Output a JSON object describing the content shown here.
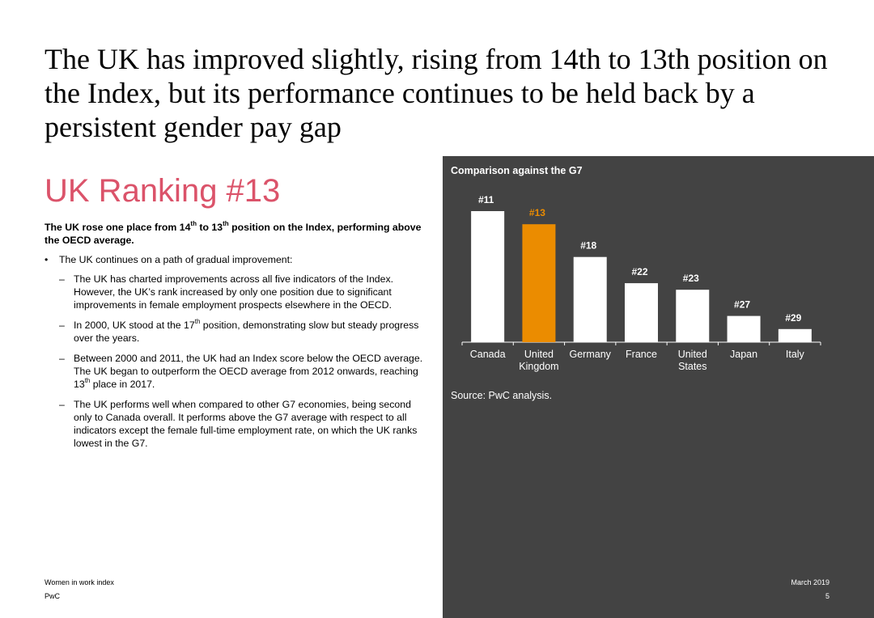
{
  "title": "The UK has improved slightly, rising from 14th to 13th position on the Index, but its performance continues to be held back by a persistent gender pay gap",
  "ranking_heading": "UK Ranking #13",
  "body": {
    "lead": {
      "a": "The UK rose one place from 14",
      "sup1": "th",
      "b": " to 13",
      "sup2": "th",
      "c": " position on the Index, performing above the OECD average."
    },
    "bullet_mark": "•",
    "bullet": "The UK continues on a path of gradual improvement:",
    "dash": "–",
    "sub1": "The UK has charted improvements across all five indicators of the Index. However, the UK’s rank increased by only one position due to significant improvements in female employment prospects elsewhere in the OECD.",
    "sub2": {
      "a": "In 2000, UK stood at the 17",
      "sup": "th",
      "b": " position, demonstrating slow but steady progress over the years."
    },
    "sub3": {
      "a": "Between 2000 and 2011, the UK had an Index score below the OECD average. The UK began to outperform the OECD average from 2012 onwards, reaching 13",
      "sup": "th",
      "b": " place in 2017."
    },
    "sub4": "The UK performs well when compared to other G7 economies, being second only to Canada overall. It performs above the G7 average with respect to all indicators except the female full-time employment rate, on which the UK ranks lowest in the G7."
  },
  "panel": {
    "title": "Comparison against the G7",
    "source": "Source: PwC analysis."
  },
  "footer": {
    "report": "Women in work index",
    "org": "PwC",
    "date": "March 2019",
    "page": "5"
  },
  "chart_data": {
    "type": "bar",
    "categories": [
      [
        "Canada"
      ],
      [
        "United",
        "Kingdom"
      ],
      [
        "Germany"
      ],
      [
        "France"
      ],
      [
        "United",
        "States"
      ],
      [
        "Japan"
      ],
      [
        "Italy"
      ]
    ],
    "ranks": [
      11,
      13,
      18,
      22,
      23,
      27,
      29
    ],
    "labels": [
      "#11",
      "#13",
      "#18",
      "#22",
      "#23",
      "#27",
      "#29"
    ],
    "highlight_index": 1,
    "colors": {
      "bar": "#ffffff",
      "highlight": "#eb8c00",
      "label": "#ffffff",
      "panel": "#434343"
    },
    "ylim": [
      31,
      11
    ]
  }
}
